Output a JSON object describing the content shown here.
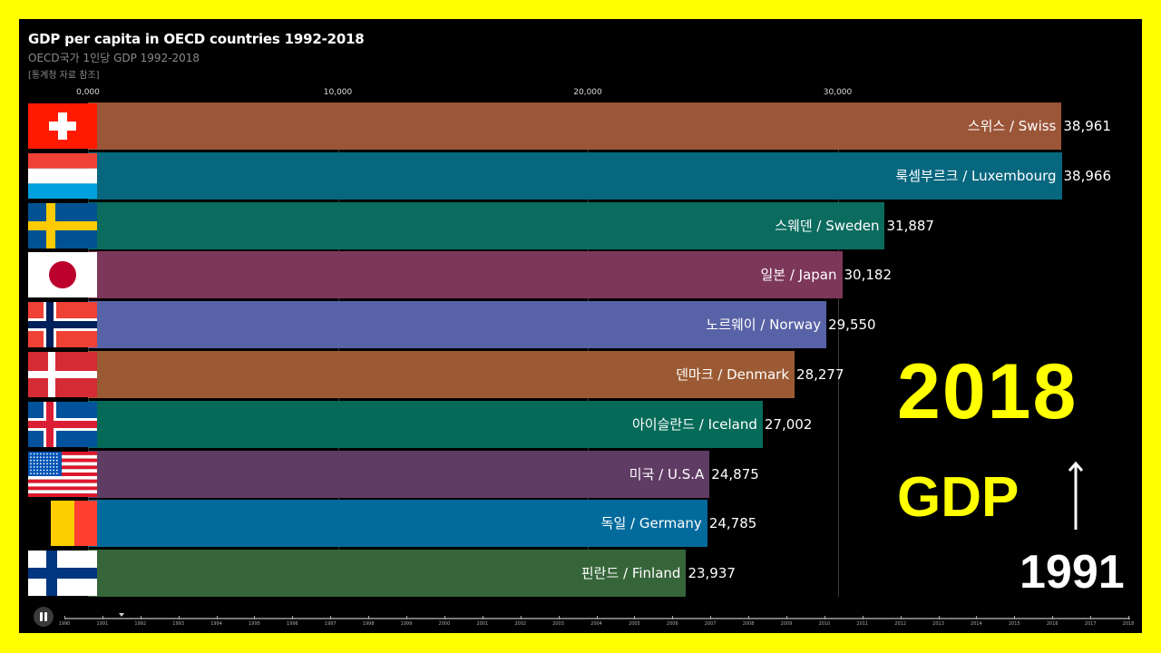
{
  "header": {
    "title": "GDP per capita in OECD countries 1992-2018",
    "subtitle": "OECD국가 1인당 GDP 1992-2018",
    "source": "[통계청 자료 참조]"
  },
  "axis": {
    "ticks": [
      {
        "label": "0,000",
        "value": 0
      },
      {
        "label": "10,000",
        "value": 10000
      },
      {
        "label": "20,000",
        "value": 20000
      },
      {
        "label": "30,000",
        "value": 30000
      }
    ]
  },
  "overlay": {
    "year": "2018",
    "gdp": "GDP",
    "from_year": "1991",
    "arrow": "up-arrow"
  },
  "player": {
    "pause_label": "pause",
    "timeline_years": [
      "1990",
      "1991",
      "1992",
      "1993",
      "1994",
      "1995",
      "1996",
      "1997",
      "1998",
      "1999",
      "2000",
      "2001",
      "2002",
      "2003",
      "2004",
      "2005",
      "2006",
      "2007",
      "2008",
      "2009",
      "2010",
      "2011",
      "2012",
      "2013",
      "2014",
      "2015",
      "2016",
      "2017",
      "2018"
    ],
    "current_position": 1991.5
  },
  "rows": [
    {
      "label": "스위스 / Swiss",
      "value_text": "38,961",
      "value": 38961,
      "color": "#9b5537",
      "flag": "switzerland"
    },
    {
      "label": "룩셈부르크 / Luxembourg",
      "value_text": "38,966",
      "value": 38966,
      "color": "#07677f",
      "flag": "luxembourg"
    },
    {
      "label": "스웨덴 / Sweden",
      "value_text": "31,887",
      "value": 31887,
      "color": "#0b6b5f",
      "flag": "sweden"
    },
    {
      "label": "일본 / Japan",
      "value_text": "30,182",
      "value": 30182,
      "color": "#7d375b",
      "flag": "japan"
    },
    {
      "label": "노르웨이 / Norway",
      "value_text": "29,550",
      "value": 29550,
      "color": "#5862a6",
      "flag": "norway"
    },
    {
      "label": "덴마크 / Denmark",
      "value_text": "28,277",
      "value": 28277,
      "color": "#9b5a33",
      "flag": "denmark"
    },
    {
      "label": "아이슬란드 / Iceland",
      "value_text": "27,002",
      "value": 27002,
      "color": "#056b58",
      "flag": "iceland"
    },
    {
      "label": "미국 / U.S.A",
      "value_text": "24,875",
      "value": 24875,
      "color": "#5f3c64",
      "flag": "usa"
    },
    {
      "label": "독일 / Germany",
      "value_text": "24,785",
      "value": 24785,
      "color": "#026b9c",
      "flag": "germany"
    },
    {
      "label": "핀란드 / Finland",
      "value_text": "23,937",
      "value": 23937,
      "color": "#36653a",
      "flag": "finland"
    }
  ],
  "chart_data": {
    "type": "bar",
    "orientation": "horizontal",
    "title": "GDP per capita in OECD countries 1992-2018",
    "subtitle": "OECD국가 1인당 GDP 1992-2018",
    "categories": [
      "스위스 / Swiss",
      "룩셈부르크 / Luxembourg",
      "스웨덴 / Sweden",
      "일본 / Japan",
      "노르웨이 / Norway",
      "덴마크 / Denmark",
      "아이슬란드 / Iceland",
      "미국 / U.S.A",
      "독일 / Germany",
      "핀란드 / Finland"
    ],
    "values": [
      38961,
      38966,
      31887,
      30182,
      29550,
      28277,
      27002,
      24875,
      24785,
      23937
    ],
    "xlabel": "",
    "ylabel": "",
    "xlim": [
      0,
      40000
    ],
    "xticks": [
      "0,000",
      "10,000",
      "20,000",
      "30,000"
    ],
    "grid": true,
    "annotations": [
      "2018",
      "GDP",
      "1991"
    ],
    "current_frame_year_position": "between 1991 and 1992"
  }
}
